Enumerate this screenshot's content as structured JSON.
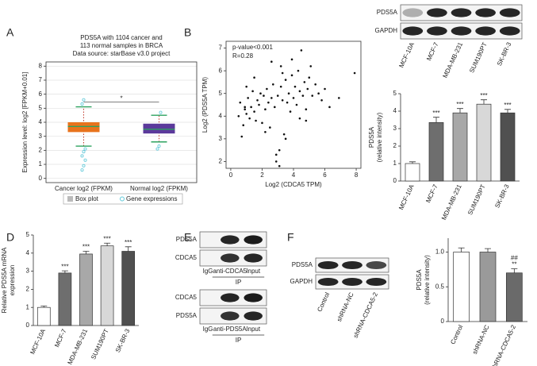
{
  "panel_labels": [
    "A",
    "B",
    "C",
    "D",
    "E",
    "F"
  ],
  "blots": {
    "C": {
      "rows": [
        "PDS5A",
        "GAPDH"
      ],
      "lanes": [
        "MCF-10A",
        "MCF-7",
        "MDA-MB-231",
        "SUM190PT",
        "SK-BR-3"
      ]
    },
    "E_top": {
      "rows": [
        "PDS5A",
        "CDCA5"
      ],
      "lanes": [
        "IgG",
        "anti-CDCA5",
        "Input"
      ],
      "group": "IP"
    },
    "E_bottom": {
      "rows": [
        "CDCA5",
        "PDS5A"
      ],
      "lanes": [
        "IgG",
        "anti-PDS5A",
        "Input"
      ],
      "group": "IP"
    },
    "F": {
      "rows": [
        "PDS5A",
        "GAPDH"
      ],
      "lanes": [
        "Control",
        "shRNA-NC",
        "shRNA-CDCA5-2"
      ]
    }
  },
  "chart_data": [
    {
      "type": "box",
      "title": [
        "PDS5A with 1104 cancer and",
        "113 normal samples in BRCA",
        "Data source: starBase v3.0 project"
      ],
      "y_label": "Expression level: log2 [FPKM+0.01]",
      "categories": [
        "Cancer log2 (FPKM)",
        "Normal log2 (FPKM)"
      ],
      "boxes": [
        {
          "low": 2.3,
          "q1": 3.3,
          "median": 3.7,
          "q3": 4.0,
          "high": 5.1
        },
        {
          "low": 2.6,
          "q1": 3.2,
          "median": 3.5,
          "q3": 3.9,
          "high": 4.5
        }
      ],
      "outliers": [
        [
          0.6,
          0.9,
          1.3,
          1.6,
          1.9,
          2.1,
          5.3,
          5.6
        ],
        [
          2.1,
          2.3,
          4.7
        ]
      ],
      "colors": [
        "#e8731c",
        "#5b3a9b"
      ],
      "outlier_color": "#5fc8d8",
      "ylim": [
        -0.3,
        8.3
      ],
      "yticks": [
        0,
        1,
        2,
        3,
        4,
        5,
        6,
        7,
        8
      ],
      "grid": true,
      "legend": [
        "Box plot",
        "Gene expressions"
      ],
      "annotation": "*"
    },
    {
      "type": "scatter",
      "x_label": "Log2 (CDCA5 TPM)",
      "y_label": "Log2 (PDS5A TPM)",
      "annotations": [
        "p-value<0.001",
        "R=0.28"
      ],
      "color": "#111",
      "x": [
        0.5,
        0.6,
        0.8,
        0.9,
        1.0,
        1.1,
        1.2,
        1.3,
        1.4,
        1.5,
        1.6,
        1.7,
        1.8,
        1.9,
        2.0,
        2.1,
        2.2,
        2.3,
        2.4,
        2.5,
        2.6,
        2.7,
        2.8,
        2.9,
        3.0,
        3.1,
        3.2,
        3.3,
        3.4,
        3.5,
        3.6,
        3.7,
        3.8,
        3.9,
        4.0,
        4.1,
        4.2,
        4.3,
        4.4,
        4.5,
        4.6,
        4.7,
        4.8,
        4.9,
        5.0,
        5.2,
        5.4,
        5.6,
        5.8,
        6.0,
        6.3,
        6.9,
        7.9,
        2.9,
        3.1,
        3.2,
        1.0,
        0.7,
        4.4,
        3.5,
        2.6,
        1.5,
        5.1,
        4.8,
        3.9,
        2.2,
        0.9,
        3.3
      ],
      "values": [
        4.0,
        4.6,
        3.6,
        4.3,
        4.1,
        4.8,
        3.9,
        4.4,
        5.1,
        4.2,
        3.8,
        4.7,
        4.5,
        5.0,
        3.7,
        4.9,
        4.3,
        5.2,
        4.6,
        3.5,
        4.8,
        5.4,
        4.4,
        2.0,
        4.9,
        1.8,
        5.3,
        4.7,
        3.2,
        5.6,
        4.6,
        5.0,
        4.2,
        5.8,
        4.8,
        5.3,
        4.5,
        6.0,
        5.1,
        6.9,
        4.9,
        5.5,
        4.3,
        5.2,
        5.7,
        4.9,
        5.4,
        5.0,
        4.7,
        5.2,
        4.4,
        4.8,
        5.9,
        2.3,
        2.5,
        6.2,
        5.3,
        3.1,
        3.9,
        3.0,
        6.4,
        5.7,
        6.2,
        3.8,
        6.5,
        3.3,
        4.4,
        5.9
      ],
      "xlim": [
        -0.3,
        8.3
      ],
      "xticks": [
        0,
        2,
        4,
        6,
        8
      ],
      "ylim": [
        1.7,
        7.3
      ],
      "yticks": [
        2,
        3,
        4,
        5,
        6,
        7
      ]
    },
    {
      "type": "bar",
      "y_label": [
        "PDS5A",
        "(relative intensity)"
      ],
      "categories": [
        "MCF-10A",
        "MCF-7",
        "MDA-MB-231",
        "SUM190PT",
        "SK-BR-3"
      ],
      "values": [
        1.0,
        3.35,
        3.9,
        4.4,
        3.9
      ],
      "errors": [
        0.1,
        0.3,
        0.25,
        0.25,
        0.2
      ],
      "value_labels": [
        null,
        "***",
        "***",
        "***",
        "***"
      ],
      "colors": [
        "#ffffff",
        "#6e6e6e",
        "#a8a8a8",
        "#d8d8d8",
        "#505050"
      ],
      "ylim": [
        0,
        5
      ],
      "yticks": [
        0,
        1,
        2,
        3,
        4,
        5
      ]
    },
    {
      "type": "bar",
      "y_label": [
        "Relative PDS5A mRNA",
        "expression"
      ],
      "categories": [
        "MCF-10A",
        "MCF-7",
        "MDA-MB-231",
        "SUM190PT",
        "SK-BR-3"
      ],
      "values": [
        1.0,
        2.9,
        3.95,
        4.4,
        4.1
      ],
      "errors": [
        0.08,
        0.12,
        0.15,
        0.15,
        0.25
      ],
      "value_labels": [
        null,
        "***",
        "***",
        "***",
        "***"
      ],
      "colors": [
        "#ffffff",
        "#6e6e6e",
        "#a8a8a8",
        "#d8d8d8",
        "#505050"
      ],
      "ylim": [
        0,
        5
      ],
      "yticks": [
        0,
        1,
        2,
        3,
        4,
        5
      ]
    },
    {
      "type": "bar",
      "y_label": [
        "PDS5A",
        "(relative intensity)"
      ],
      "categories": [
        "Control",
        "shRNA-NC",
        "shRNA-CDCA5-2"
      ],
      "values": [
        1.0,
        1.0,
        0.7
      ],
      "errors": [
        0.06,
        0.05,
        0.06
      ],
      "value_labels": [
        null,
        null,
        "**"
      ],
      "annotation": "##",
      "colors": [
        "#ffffff",
        "#9a9a9a",
        "#6a6a6a"
      ],
      "ylim": [
        0,
        1.2
      ],
      "yticks": [
        0,
        0.5,
        {
          "value": 1,
          "label": "1.0"
        }
      ]
    }
  ]
}
